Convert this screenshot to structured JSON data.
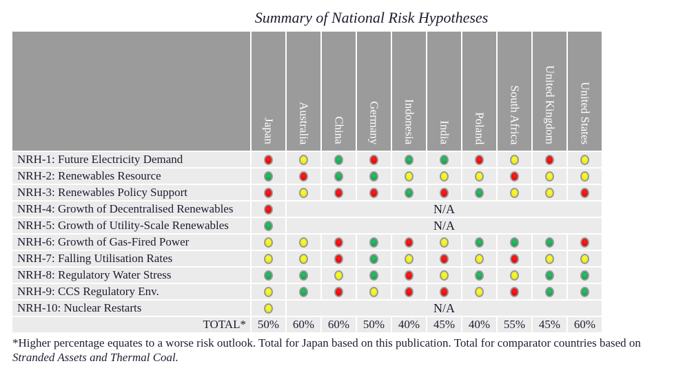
{
  "title": "Summary of National Risk Hypotheses",
  "chart_data": {
    "type": "table",
    "title": "Summary of National Risk Hypotheses",
    "columns": [
      "Japan",
      "Australia",
      "China",
      "Germany",
      "Indonesia",
      "India",
      "Poland",
      "South Africa",
      "United Kingdom",
      "United States"
    ],
    "rating_scale": [
      "green",
      "yellow",
      "red"
    ],
    "na_label": "N/A",
    "rows": [
      {
        "label": "NRH-1: Future Electricity Demand",
        "ratings": [
          "red",
          "yellow",
          "green",
          "red",
          "green",
          "green",
          "red",
          "yellow",
          "red",
          "yellow"
        ]
      },
      {
        "label": "NRH-2: Renewables Resource",
        "ratings": [
          "green",
          "red",
          "green",
          "green",
          "yellow",
          "yellow",
          "yellow",
          "red",
          "yellow",
          "yellow"
        ]
      },
      {
        "label": "NRH-3: Renewables Policy Support",
        "ratings": [
          "red",
          "yellow",
          "red",
          "red",
          "green",
          "red",
          "green",
          "yellow",
          "yellow",
          "red"
        ]
      },
      {
        "label": "NRH-4: Growth of Decentralised Renewables",
        "ratings": [
          "red"
        ],
        "comparators": "N/A"
      },
      {
        "label": "NRH-5: Growth of Utility-Scale Renewables",
        "ratings": [
          "green"
        ],
        "comparators": "N/A"
      },
      {
        "label": "NRH-6: Growth of Gas-Fired Power",
        "ratings": [
          "yellow",
          "yellow",
          "red",
          "green",
          "red",
          "yellow",
          "green",
          "green",
          "green",
          "red"
        ]
      },
      {
        "label": "NRH-7: Falling Utilisation Rates",
        "ratings": [
          "yellow",
          "yellow",
          "red",
          "green",
          "yellow",
          "red",
          "yellow",
          "red",
          "yellow",
          "yellow"
        ]
      },
      {
        "label": "NRH-8: Regulatory Water Stress",
        "ratings": [
          "green",
          "green",
          "yellow",
          "green",
          "red",
          "yellow",
          "green",
          "yellow",
          "green",
          "green"
        ]
      },
      {
        "label": "NRH-9: CCS Regulatory Env.",
        "ratings": [
          "yellow",
          "green",
          "red",
          "yellow",
          "red",
          "red",
          "yellow",
          "red",
          "green",
          "green"
        ]
      },
      {
        "label": "NRH-10: Nuclear Restarts",
        "ratings": [
          "yellow"
        ],
        "comparators": "N/A"
      }
    ],
    "total_row": {
      "label": "TOTAL*",
      "values": [
        "50%",
        "60%",
        "60%",
        "50%",
        "40%",
        "45%",
        "40%",
        "55%",
        "45%",
        "60%"
      ]
    }
  },
  "footnote": {
    "line1": "*Higher percentage equates to a worse risk outlook. Total for Japan based on this publication. Total for comparator countries based on",
    "line2_italic": "Stranded Assets and Thermal Coal."
  },
  "colors": {
    "red": "#e60404",
    "yellow": "#ecec08",
    "green": "#12a24d",
    "header_bg": "#9b9b9b",
    "cell_bg": "#ebebeb",
    "text": "#1c1c30"
  }
}
